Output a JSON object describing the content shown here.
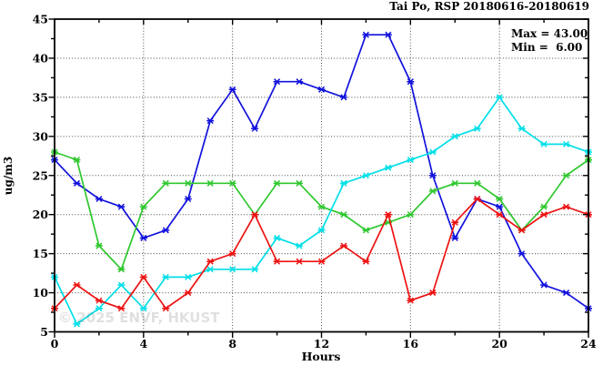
{
  "header": {
    "title": "Tai Po, RSP 20180616-20180619"
  },
  "legend": {
    "max_label": "Max = 43.00",
    "min_label": "Min =  6.00"
  },
  "axes": {
    "y_label": "ug/m3",
    "x_label": "Hours"
  },
  "watermark": {
    "text": "© 2025 ENVF, HKUST"
  },
  "chart_data": {
    "type": "line",
    "title": "Tai Po, RSP 20180616-20180619",
    "xlabel": "Hours",
    "ylabel": "ug/m3",
    "xlim": [
      0,
      24
    ],
    "ylim": [
      5,
      45
    ],
    "xticks": [
      0,
      4,
      8,
      12,
      16,
      20,
      24
    ],
    "xticks_minor": [
      2,
      6,
      10,
      14,
      18,
      22
    ],
    "yticks": [
      5,
      10,
      15,
      20,
      25,
      30,
      35,
      40,
      45
    ],
    "yticks_minor": [
      7.5,
      12.5,
      17.5,
      22.5,
      27.5,
      32.5,
      37.5,
      42.5
    ],
    "grid_x": [
      4,
      8,
      12,
      16,
      20
    ],
    "grid_y": [
      10,
      15,
      20,
      25,
      30,
      35,
      40
    ],
    "grid": true,
    "legend_position": "top-right-inside",
    "marker": "asterisk",
    "annotations": {
      "max": "43.00",
      "min": "6.00"
    },
    "x": [
      0,
      1,
      2,
      3,
      4,
      5,
      6,
      7,
      8,
      9,
      10,
      11,
      12,
      13,
      14,
      15,
      16,
      17,
      18,
      19,
      20,
      21,
      22,
      23,
      24
    ],
    "series": [
      {
        "name": "blue-series",
        "color": "#1212dd",
        "values": [
          27,
          24,
          22,
          21,
          17,
          18,
          22,
          32,
          36,
          31,
          37,
          37,
          36,
          35,
          43,
          43,
          37,
          25,
          17,
          22,
          21,
          15,
          11,
          10,
          8
        ]
      },
      {
        "name": "green-series",
        "color": "#2ec82e",
        "values": [
          28,
          27,
          16,
          13,
          21,
          24,
          24,
          24,
          24,
          20,
          24,
          24,
          21,
          20,
          18,
          19,
          20,
          23,
          24,
          24,
          22,
          18,
          21,
          25,
          27
        ]
      },
      {
        "name": "cyan-series",
        "color": "#00dfe8",
        "values": [
          12,
          6,
          8,
          11,
          8,
          12,
          12,
          13,
          13,
          13,
          17,
          16,
          18,
          24,
          25,
          26,
          27,
          28,
          30,
          31,
          35,
          31,
          29,
          29,
          28
        ]
      },
      {
        "name": "red-series",
        "color": "#ee1212",
        "values": [
          8,
          11,
          9,
          8,
          12,
          8,
          10,
          14,
          15,
          20,
          14,
          14,
          14,
          16,
          14,
          20,
          9,
          10,
          19,
          22,
          20,
          18,
          20,
          21,
          20
        ]
      }
    ]
  }
}
